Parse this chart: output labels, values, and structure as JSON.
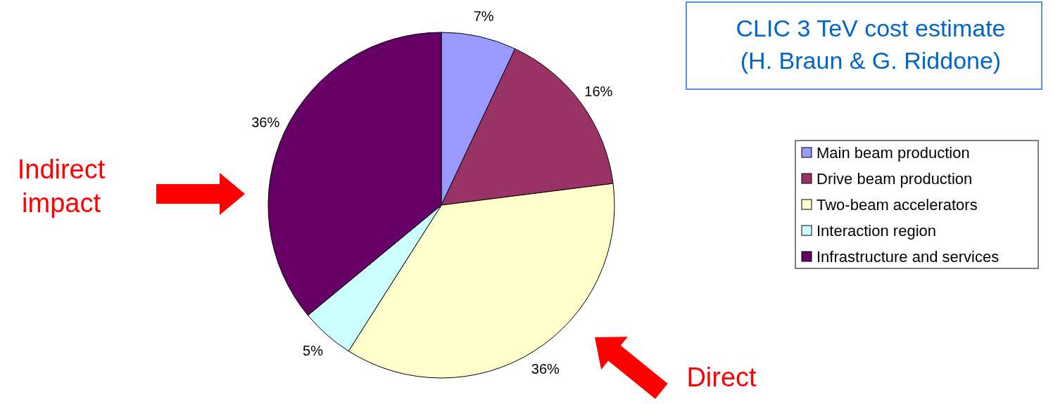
{
  "chart_data": {
    "type": "pie",
    "title": "CLIC 3 TeV cost estimate",
    "subtitle": "(H. Braun & G. Riddone)",
    "categories": [
      "Main beam production",
      "Drive beam production",
      "Two-beam accelerators",
      "Interaction region",
      "Infrastructure and services"
    ],
    "values": [
      7,
      16,
      36,
      5,
      36
    ],
    "colors": [
      "#9999ff",
      "#993366",
      "#ffffcc",
      "#ccffff",
      "#660066"
    ],
    "value_labels": [
      "7%",
      "16%",
      "36%",
      "5%",
      "36%"
    ],
    "legend": "right",
    "annotations": [
      "Indirect impact",
      "Direct"
    ]
  }
}
